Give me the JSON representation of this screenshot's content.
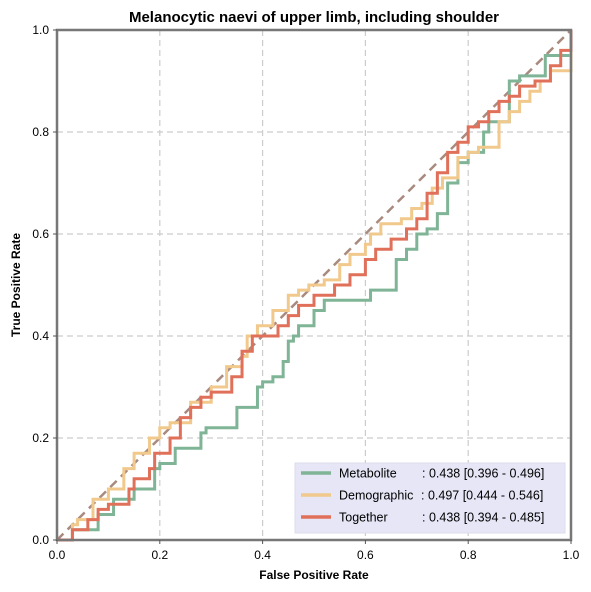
{
  "chart_data": {
    "type": "line",
    "title": "Melanocytic naevi of upper limb, including shoulder",
    "xlabel": "False Positive Rate",
    "ylabel": "True Positive Rate",
    "xlim": [
      0,
      1
    ],
    "ylim": [
      0,
      1
    ],
    "xticks": [
      "0.0",
      "0.2",
      "0.4",
      "0.6",
      "0.8",
      "1.0"
    ],
    "yticks": [
      "0.0",
      "0.2",
      "0.4",
      "0.6",
      "0.8",
      "1.0"
    ],
    "grid": true,
    "legend_position": "bottom-right",
    "reference_line": {
      "x": [
        0,
        1
      ],
      "y": [
        0,
        1
      ],
      "color": "#a88a7e",
      "style": "dashed"
    },
    "series": [
      {
        "name": "Metabolite",
        "auc_text": ": 0.438 [0.396 - 0.496]",
        "color": "#7fb596",
        "x": [
          0,
          0.02,
          0.03,
          0.04,
          0.08,
          0.09,
          0.11,
          0.12,
          0.15,
          0.16,
          0.19,
          0.2,
          0.23,
          0.26,
          0.28,
          0.29,
          0.35,
          0.36,
          0.39,
          0.4,
          0.42,
          0.44,
          0.45,
          0.46,
          0.47,
          0.48,
          0.5,
          0.51,
          0.52,
          0.6,
          0.61,
          0.66,
          0.68,
          0.7,
          0.72,
          0.74,
          0.76,
          0.78,
          0.8,
          0.83,
          0.84,
          0.88,
          0.9,
          0.93,
          0.95,
          1.0
        ],
        "y": [
          0,
          0.0,
          0.02,
          0.02,
          0.05,
          0.05,
          0.08,
          0.08,
          0.1,
          0.1,
          0.14,
          0.15,
          0.18,
          0.18,
          0.21,
          0.22,
          0.26,
          0.26,
          0.3,
          0.31,
          0.32,
          0.35,
          0.39,
          0.4,
          0.42,
          0.42,
          0.45,
          0.45,
          0.47,
          0.47,
          0.49,
          0.55,
          0.57,
          0.6,
          0.61,
          0.64,
          0.7,
          0.74,
          0.76,
          0.8,
          0.82,
          0.9,
          0.91,
          0.91,
          0.95,
          1.0
        ]
      },
      {
        "name": "Demographic",
        "auc_text": ": 0.497 [0.444 - 0.546]",
        "color": "#f1c98c",
        "x": [
          0,
          0.03,
          0.04,
          0.07,
          0.1,
          0.13,
          0.15,
          0.18,
          0.2,
          0.22,
          0.26,
          0.3,
          0.33,
          0.36,
          0.37,
          0.39,
          0.4,
          0.42,
          0.45,
          0.47,
          0.49,
          0.52,
          0.55,
          0.57,
          0.6,
          0.61,
          0.63,
          0.65,
          0.67,
          0.69,
          0.71,
          0.73,
          0.75,
          0.78,
          0.8,
          0.82,
          0.83,
          0.86,
          0.88,
          0.9,
          0.92,
          0.94,
          0.96,
          1.0
        ],
        "y": [
          0,
          0.03,
          0.04,
          0.08,
          0.1,
          0.14,
          0.17,
          0.2,
          0.22,
          0.23,
          0.27,
          0.3,
          0.34,
          0.36,
          0.4,
          0.42,
          0.42,
          0.45,
          0.48,
          0.49,
          0.5,
          0.51,
          0.54,
          0.56,
          0.58,
          0.6,
          0.62,
          0.62,
          0.63,
          0.65,
          0.66,
          0.69,
          0.71,
          0.75,
          0.76,
          0.77,
          0.77,
          0.82,
          0.84,
          0.86,
          0.88,
          0.9,
          0.92,
          1.0
        ]
      },
      {
        "name": "Together",
        "auc_text": ": 0.438 [0.394 - 0.485]",
        "color": "#e0705a",
        "x": [
          0,
          0.03,
          0.06,
          0.08,
          0.1,
          0.14,
          0.15,
          0.18,
          0.19,
          0.22,
          0.24,
          0.26,
          0.28,
          0.3,
          0.34,
          0.36,
          0.38,
          0.43,
          0.45,
          0.47,
          0.5,
          0.54,
          0.57,
          0.6,
          0.62,
          0.65,
          0.68,
          0.7,
          0.72,
          0.74,
          0.76,
          0.78,
          0.8,
          0.82,
          0.84,
          0.86,
          0.88,
          0.9,
          0.93,
          0.96,
          0.98,
          1.0
        ],
        "y": [
          0,
          0.02,
          0.04,
          0.06,
          0.07,
          0.1,
          0.12,
          0.14,
          0.17,
          0.2,
          0.24,
          0.26,
          0.28,
          0.29,
          0.32,
          0.37,
          0.4,
          0.42,
          0.44,
          0.46,
          0.48,
          0.5,
          0.52,
          0.55,
          0.57,
          0.59,
          0.61,
          0.63,
          0.68,
          0.72,
          0.76,
          0.78,
          0.81,
          0.82,
          0.84,
          0.86,
          0.87,
          0.89,
          0.9,
          0.93,
          0.96,
          1.0
        ]
      }
    ]
  }
}
